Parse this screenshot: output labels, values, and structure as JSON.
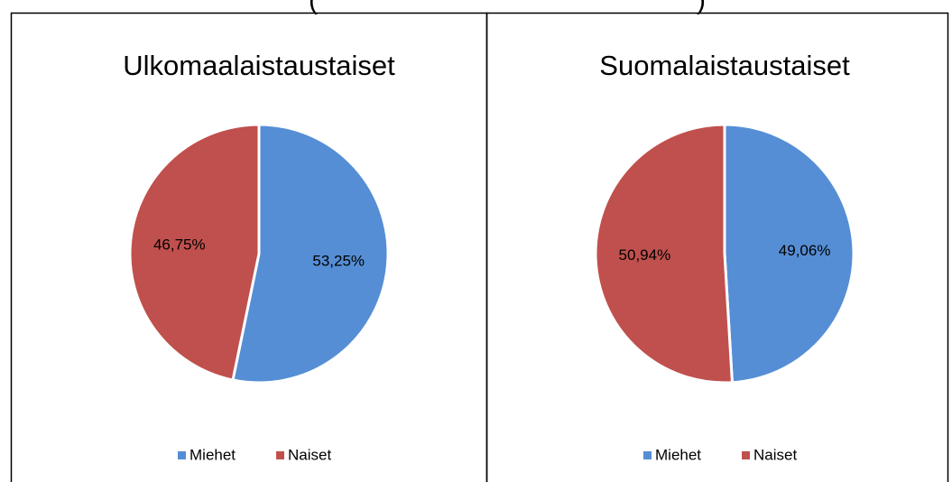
{
  "header": {
    "left": "(",
    "right": ")"
  },
  "chart_data": [
    {
      "type": "pie",
      "title": "Ulkomaalaistaustaiset",
      "categories": [
        "Miehet",
        "Naiset"
      ],
      "values": [
        53.25,
        46.75
      ],
      "value_labels": [
        "53,25%",
        "46,75%"
      ],
      "colors": [
        "#558ed5",
        "#c0504d"
      ],
      "legend": "bottom"
    },
    {
      "type": "pie",
      "title": "Suomalaistaustaiset",
      "categories": [
        "Miehet",
        "Naiset"
      ],
      "values": [
        49.06,
        50.94
      ],
      "value_labels": [
        "49,06%",
        "50,94%"
      ],
      "colors": [
        "#558ed5",
        "#c0504d"
      ],
      "legend": "bottom"
    }
  ]
}
